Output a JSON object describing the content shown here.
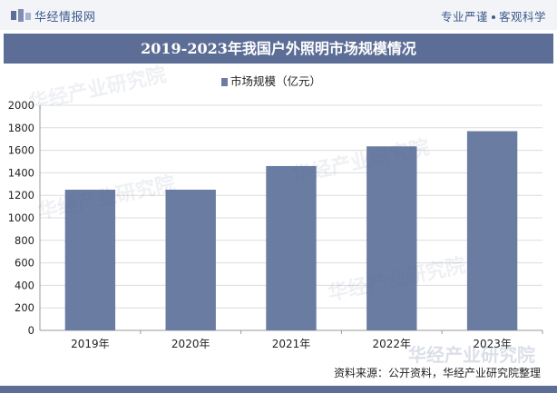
{
  "header": {
    "brand": "华经情报网",
    "tagline_left": "专业严谨",
    "tagline_right": "客观科学"
  },
  "title": "2019-2023年我国户外照明市场规模情况",
  "footer": {
    "source": "资料来源：公开资料，华经产业研究院整理"
  },
  "colors": {
    "bar": "#6b7ca3",
    "title_band": "#5d6e96",
    "brand": "#3c5a8c",
    "grid": "#dcdcdc",
    "axis": "#999999"
  },
  "chart_data": {
    "type": "bar",
    "title": "2019-2023年我国户外照明市场规模情况",
    "categories": [
      "2019年",
      "2020年",
      "2021年",
      "2022年",
      "2023年"
    ],
    "series": [
      {
        "name": "市场规模（亿元）",
        "values": [
          1250,
          1250,
          1460,
          1635,
          1770
        ]
      }
    ],
    "yticks": [
      0,
      200,
      400,
      600,
      800,
      1000,
      1200,
      1400,
      1600,
      1800,
      2000
    ],
    "ylim": [
      0,
      2000
    ],
    "xlabel": "",
    "ylabel": "",
    "grid": true,
    "legend_position": "top-center"
  }
}
